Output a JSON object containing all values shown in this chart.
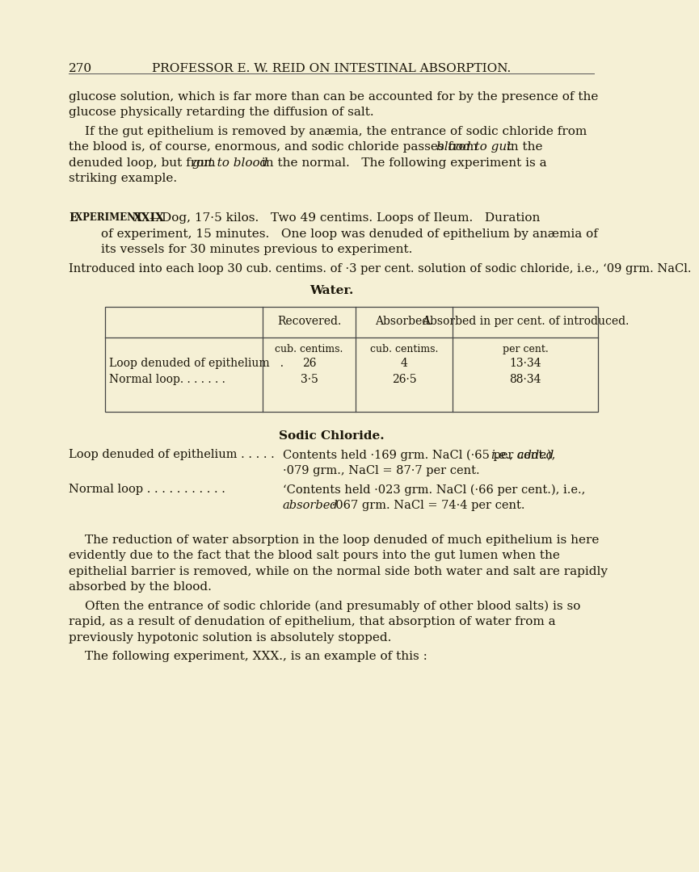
{
  "page_bg": "#f5f0d5",
  "text_color": "#1a1508",
  "page_number": "270",
  "header": "PROFESSOR E. W. REID ON INTESTINAL ABSORPTION.",
  "para1_line1": "glucose solution, which is far more than can be accounted for by the presence of the",
  "para1_line2": "glucose physically retarding the diffusion of salt.",
  "para2_line1": "If the gut epithelium is removed by anæmia, the entrance of sodic chloride from",
  "para2_line2a": "the blood is, of course, enormous, and sodic chloride passes from ",
  "para2_line2b_italic": "blood to gut",
  "para2_line2c": " in the",
  "para2_line3a": "denuded loop, but from ",
  "para2_line3b_italic": "gut to blood",
  "para2_line3c": " in the normal.   The following experiment is a",
  "para2_line4": "striking example.",
  "exp_line1a": "E",
  "exp_line1b": "xperiment ",
  "exp_line1c": "XXIX",
  "exp_line1d": ".—Dog, 17·5 kilos.   Two 49 centims. Loops of Ileum.   Duration",
  "exp_line2": "of experiment, 15 minutes.   One loop was denuded of epithelium by anæmia of",
  "exp_line3": "its vessels for 30 minutes previous to experiment.",
  "intro_line": "Introduced into each loop 30 cub. centims. of ·3 per cent. solution of sodic chloride, i.e., ʻ09 grm. NaCl.",
  "water_heading": "Water.",
  "table_header_col2": "Recovered.",
  "table_header_col3": "Absorbed.",
  "table_header_col4": "Absorbed in per cent. of introduced.",
  "table_units_col2": "cub. centims.",
  "table_units_col3": "cub. centims.",
  "table_units_col4": "per cent.",
  "table_row1_col1": "Loop denuded of epithelium   .",
  "table_row1_col2": "26",
  "table_row1_col3": "4",
  "table_row1_col4": "13·34",
  "table_row2_col1": "Normal loop. . . . . . .",
  "table_row2_col2": "3·5",
  "table_row2_col3": "26·5",
  "table_row2_col4": "88·34",
  "sodic_heading": "Sodic Chloride.",
  "sodic1_label": "Loop denuded of epithelium . . . . .",
  "sodic1_text1": "Contents held ·169 grm. NaCl (·65 per cent.), ",
  "sodic1_italic": "i.e., added",
  "sodic1_text2": "·079 grm., NaCl = 87·7 per cent.",
  "sodic2_label": "Normal loop . . . . . . . . . . .",
  "sodic2_text1": "‘Contents held ·023 grm. NaCl (·66 per cent.), i.e.,",
  "sodic2_italic": "absorbed",
  "sodic2_text2": " ·067 grm. NaCl = 74·4 per cent.",
  "para3_line1": "The reduction of water absorption in the loop denuded of much epithelium is here",
  "para3_line2": "evidently due to the fact that the blood salt pours into the gut lumen when the",
  "para3_line3": "epithelial barrier is removed, while on the normal side both water and salt are rapidly",
  "para3_line4": "absorbed by the blood.",
  "para4_line1": "Often the entrance of sodic chloride (and presumably of other blood salts) is so",
  "para4_line2": "rapid, as a result of denudation of epithelium, that absorption of water from a",
  "para4_line3": "previously hypotonic solution is absolutely stopped.",
  "para5": "The following experiment, XXX., is an example of this :"
}
